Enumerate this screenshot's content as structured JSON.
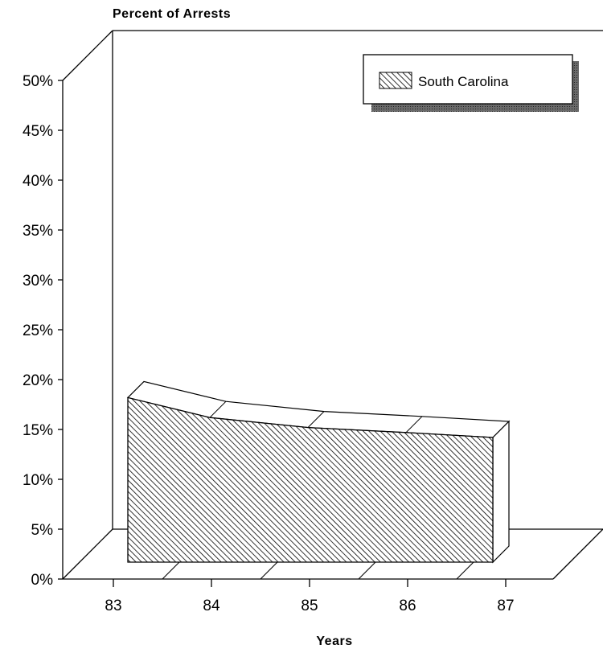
{
  "chart_data": {
    "type": "area",
    "title": "",
    "ylabel": "Percent of Arrests",
    "xlabel": "Years",
    "x": [
      "83",
      "84",
      "85",
      "86",
      "87"
    ],
    "y_ticks": [
      "0%",
      "5%",
      "10%",
      "15%",
      "20%",
      "25%",
      "30%",
      "35%",
      "40%",
      "45%",
      "50%"
    ],
    "ylim": [
      0,
      50
    ],
    "series": [
      {
        "name": "South Carolina",
        "values": [
          16.5,
          14.5,
          13.5,
          13,
          12.5
        ]
      }
    ],
    "legend_position": "top-right",
    "grid": false,
    "colors": {
      "fill": "#000000",
      "background": "#ffffff",
      "shadow": "#444444"
    }
  }
}
